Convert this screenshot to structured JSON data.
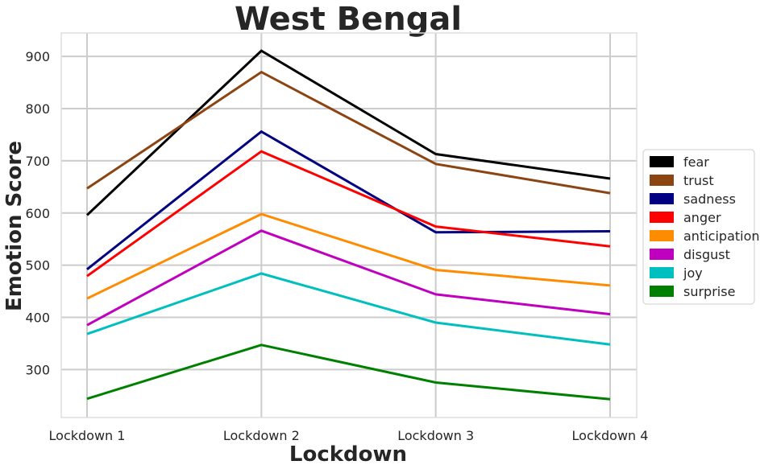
{
  "chart_data": {
    "type": "line",
    "title": "West Bengal",
    "xlabel": "Lockdown",
    "ylabel": "Emotion Score",
    "categories": [
      "Lockdown 1",
      "Lockdown 2",
      "Lockdown 3",
      "Lockdown 4"
    ],
    "ylim": [
      208,
      945
    ],
    "yticks": [
      300,
      400,
      500,
      600,
      700,
      800,
      900
    ],
    "grid": true,
    "legend_position": "right",
    "series": [
      {
        "name": "fear",
        "color": "#000000",
        "values": [
          596,
          911,
          713,
          666
        ]
      },
      {
        "name": "trust",
        "color": "#8B4513",
        "values": [
          647,
          870,
          694,
          638
        ]
      },
      {
        "name": "sadness",
        "color": "#000080",
        "values": [
          492,
          756,
          563,
          565
        ]
      },
      {
        "name": "anger",
        "color": "#FF0000",
        "values": [
          479,
          718,
          574,
          536
        ]
      },
      {
        "name": "anticipation",
        "color": "#FF8C00",
        "values": [
          436,
          598,
          491,
          461
        ]
      },
      {
        "name": "disgust",
        "color": "#BF00BF",
        "values": [
          385,
          566,
          444,
          406
        ]
      },
      {
        "name": "joy",
        "color": "#00BFBF",
        "values": [
          368,
          484,
          390,
          348
        ]
      },
      {
        "name": "surprise",
        "color": "#008000",
        "values": [
          244,
          347,
          275,
          243
        ]
      }
    ]
  }
}
